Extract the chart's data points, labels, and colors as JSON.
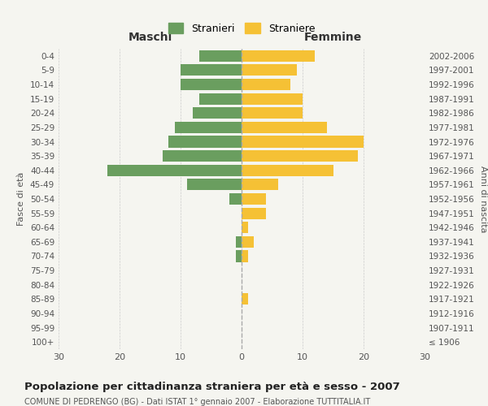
{
  "age_groups": [
    "100+",
    "95-99",
    "90-94",
    "85-89",
    "80-84",
    "75-79",
    "70-74",
    "65-69",
    "60-64",
    "55-59",
    "50-54",
    "45-49",
    "40-44",
    "35-39",
    "30-34",
    "25-29",
    "20-24",
    "15-19",
    "10-14",
    "5-9",
    "0-4"
  ],
  "birth_years": [
    "≤ 1906",
    "1907-1911",
    "1912-1916",
    "1917-1921",
    "1922-1926",
    "1927-1931",
    "1932-1936",
    "1937-1941",
    "1942-1946",
    "1947-1951",
    "1952-1956",
    "1957-1961",
    "1962-1966",
    "1967-1971",
    "1972-1976",
    "1977-1981",
    "1982-1986",
    "1987-1991",
    "1992-1996",
    "1997-2001",
    "2002-2006"
  ],
  "males": [
    0,
    0,
    0,
    0,
    0,
    0,
    1,
    1,
    0,
    0,
    2,
    9,
    22,
    13,
    12,
    11,
    8,
    7,
    10,
    10,
    7
  ],
  "females": [
    0,
    0,
    0,
    1,
    0,
    0,
    1,
    2,
    1,
    4,
    4,
    6,
    15,
    19,
    20,
    14,
    10,
    10,
    8,
    9,
    12
  ],
  "male_color": "#6a9e5f",
  "female_color": "#f5c135",
  "background_color": "#f5f5f0",
  "grid_color": "#cccccc",
  "title": "Popolazione per cittadinanza straniera per età e sesso - 2007",
  "subtitle": "COMUNE DI PEDRENGO (BG) - Dati ISTAT 1° gennaio 2007 - Elaborazione TUTTITALIA.IT",
  "xlabel_left": "Maschi",
  "xlabel_right": "Femmine",
  "ylabel_left": "Fasce di età",
  "ylabel_right": "Anni di nascita",
  "legend_male": "Stranieri",
  "legend_female": "Straniere",
  "xlim": 30,
  "bar_height": 0.8
}
